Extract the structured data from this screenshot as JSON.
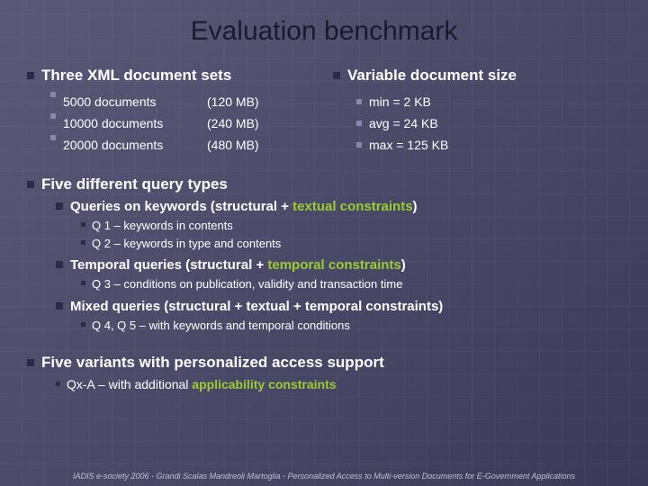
{
  "title": "Evaluation benchmark",
  "left": {
    "heading": "Three XML document sets",
    "rows": [
      {
        "label": "5000 documents",
        "paren": "(120 MB)"
      },
      {
        "label": "10000 documents",
        "paren": "(240 MB)"
      },
      {
        "label": "20000 documents",
        "paren": "(480 MB)"
      }
    ]
  },
  "right": {
    "heading": "Variable document size",
    "rows": [
      {
        "text": "min = 2 KB"
      },
      {
        "text": "avg = 24 KB"
      },
      {
        "text": "max = 125 KB"
      }
    ]
  },
  "query_types": {
    "heading": "Five different query types",
    "groups": [
      {
        "title_pre": "Queries on keywords (structural + ",
        "title_green": "textual constraints",
        "title_post": ")",
        "items": [
          "Q 1 – keywords in contents",
          "Q 2 – keywords in type and contents"
        ]
      },
      {
        "title_pre": "Temporal queries (structural + ",
        "title_green": "temporal constraints",
        "title_post": ")",
        "items": [
          "Q 3 – conditions on publication, validity and transaction time"
        ]
      },
      {
        "title_pre": "Mixed queries (structural + textual + temporal constraints)",
        "title_green": "",
        "title_post": "",
        "items": [
          "Q 4, Q 5  – with keywords and temporal conditions"
        ]
      }
    ]
  },
  "variants": {
    "heading": "Five variants with personalized access support",
    "item_pre": "Qx-A – with additional ",
    "item_green": "applicability constraints"
  },
  "footer": "IADIS e-society 2006  -  Grandi  Scalas  Mandreoli  Martoglia  -  Personalized Access to Multi-version Documents for E-Government Applications",
  "colors": {
    "title": "#1a1a2e",
    "text": "#ffffff",
    "accent": "#9acd32",
    "bg_from": "#5a5a78",
    "bg_to": "#3a3a58"
  }
}
